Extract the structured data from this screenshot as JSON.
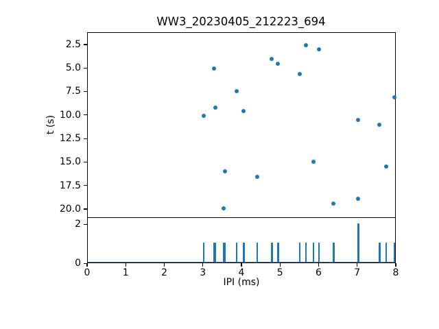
{
  "figure": {
    "title": "WW3_20230405_212223_694",
    "background": "#ffffff"
  },
  "colors": {
    "marker": "#1f77b4",
    "bar": "#1f77b4",
    "axis": "#000000",
    "text": "#000000"
  },
  "chart_data": [
    {
      "id": "click-times-scatter",
      "type": "scatter",
      "title": "WW3_20230405_212223_694",
      "xlabel": "",
      "ylabel": "t (s)",
      "xlim": [
        0,
        8
      ],
      "ylim": [
        1.2,
        20.95
      ],
      "y_inverted": true,
      "grid": false,
      "legend": "none",
      "ytick_values": [
        2.5,
        5.0,
        7.5,
        10.0,
        12.5,
        15.0,
        17.5,
        20.0
      ],
      "ytick_labels": [
        "2.5",
        "5.0",
        "7.5",
        "10.0",
        "12.5",
        "15.0",
        "17.5",
        "20.0"
      ],
      "marker_color": "#1f77b4",
      "points": [
        {
          "x": 3.02,
          "t": 10.1
        },
        {
          "x": 3.28,
          "t": 5.05
        },
        {
          "x": 3.32,
          "t": 9.2
        },
        {
          "x": 3.54,
          "t": 19.9
        },
        {
          "x": 3.57,
          "t": 16.0
        },
        {
          "x": 3.87,
          "t": 7.5
        },
        {
          "x": 4.06,
          "t": 9.6
        },
        {
          "x": 4.41,
          "t": 16.6
        },
        {
          "x": 4.79,
          "t": 4.05
        },
        {
          "x": 4.95,
          "t": 4.55
        },
        {
          "x": 5.51,
          "t": 5.65
        },
        {
          "x": 5.67,
          "t": 2.55
        },
        {
          "x": 5.87,
          "t": 14.95
        },
        {
          "x": 6.01,
          "t": 3.0
        },
        {
          "x": 6.39,
          "t": 19.4
        },
        {
          "x": 7.03,
          "t": 10.5
        },
        {
          "x": 7.03,
          "t": 18.9
        },
        {
          "x": 7.58,
          "t": 11.05
        },
        {
          "x": 7.75,
          "t": 15.45
        },
        {
          "x": 7.96,
          "t": 8.1
        }
      ]
    },
    {
      "id": "ipi-histogram",
      "type": "bar",
      "title": "",
      "xlabel": "IPI (ms)",
      "ylabel": "",
      "xlim": [
        0,
        8
      ],
      "ylim": [
        0,
        2.32
      ],
      "grid": false,
      "legend": "none",
      "xtick_values": [
        0,
        1,
        2,
        3,
        4,
        5,
        6,
        7,
        8
      ],
      "xtick_labels": [
        "0",
        "1",
        "2",
        "3",
        "4",
        "5",
        "6",
        "7",
        "8"
      ],
      "ytick_values": [
        0,
        2
      ],
      "ytick_labels": [
        "0",
        "2"
      ],
      "bar_color": "#1f77b4",
      "baseline_value": 0,
      "bars": [
        {
          "x": 3.02,
          "h": 1
        },
        {
          "x": 3.28,
          "h": 1
        },
        {
          "x": 3.32,
          "h": 1
        },
        {
          "x": 3.54,
          "h": 1
        },
        {
          "x": 3.57,
          "h": 1
        },
        {
          "x": 3.87,
          "h": 1
        },
        {
          "x": 4.06,
          "h": 1
        },
        {
          "x": 4.41,
          "h": 1
        },
        {
          "x": 4.79,
          "h": 1
        },
        {
          "x": 4.95,
          "h": 1
        },
        {
          "x": 5.51,
          "h": 1
        },
        {
          "x": 5.67,
          "h": 1
        },
        {
          "x": 5.87,
          "h": 1
        },
        {
          "x": 6.01,
          "h": 1
        },
        {
          "x": 6.39,
          "h": 1
        },
        {
          "x": 7.03,
          "h": 2
        },
        {
          "x": 7.58,
          "h": 1
        },
        {
          "x": 7.75,
          "h": 1
        },
        {
          "x": 7.96,
          "h": 1
        }
      ]
    }
  ]
}
